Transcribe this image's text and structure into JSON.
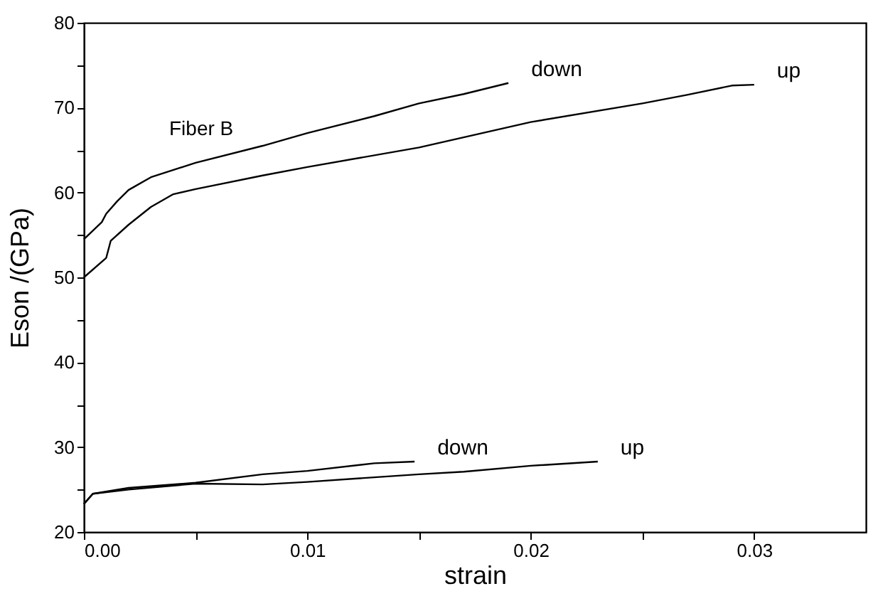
{
  "chart_data": {
    "type": "line",
    "xlabel": "strain",
    "ylabel": "Eson /(GPa)",
    "xlim": [
      0,
      0.035
    ],
    "ylim": [
      20,
      80
    ],
    "xticks": [
      {
        "value": 0,
        "label": "0.00"
      },
      {
        "value": 0.005,
        "label": null
      },
      0.01,
      {
        "value": 0.015,
        "label": null
      },
      0.02,
      {
        "value": 0.025,
        "label": null
      },
      0.03
    ],
    "yticks": [
      20,
      {
        "value": 25,
        "label": null
      },
      30,
      {
        "value": 35,
        "label": null
      },
      40,
      {
        "value": 45,
        "label": null
      },
      50,
      {
        "value": 55,
        "label": null
      },
      60,
      {
        "value": 65,
        "label": null
      },
      70,
      {
        "value": 75,
        "label": null
      },
      80
    ],
    "grid": false,
    "marker": "none",
    "line_style": "solid",
    "annotations": [
      "Fiber B"
    ],
    "series": [
      {
        "name": "down",
        "color": "#000000",
        "x": [
          0,
          0.0008,
          0.001,
          0.0015,
          0.002,
          0.003,
          0.005,
          0.008,
          0.01,
          0.013,
          0.015,
          0.017,
          0.019
        ],
        "values": [
          54.5,
          56.5,
          57.5,
          59,
          60.3,
          61.8,
          63.5,
          65.5,
          67,
          69,
          70.5,
          71.6,
          72.9
        ]
      },
      {
        "name": "up",
        "color": "#000000",
        "x": [
          0,
          0.001,
          0.0012,
          0.002,
          0.003,
          0.004,
          0.005,
          0.008,
          0.01,
          0.015,
          0.02,
          0.025,
          0.027,
          0.029,
          0.03
        ],
        "values": [
          50,
          52.3,
          54.3,
          56.2,
          58.3,
          59.8,
          60.4,
          62,
          63,
          65.3,
          68.3,
          70.5,
          71.5,
          72.6,
          72.7
        ]
      },
      {
        "name": "down",
        "color": "#000000",
        "x": [
          0,
          0.0004,
          0.002,
          0.005,
          0.008,
          0.01,
          0.013,
          0.0148
        ],
        "values": [
          23.3,
          24.5,
          25.2,
          25.8,
          26.8,
          27.2,
          28.1,
          28.3
        ]
      },
      {
        "name": "up",
        "color": "#000000",
        "x": [
          0,
          0.0004,
          0.002,
          0.005,
          0.008,
          0.01,
          0.015,
          0.017,
          0.02,
          0.023
        ],
        "values": [
          23.3,
          24.5,
          25.0,
          25.7,
          25.6,
          25.9,
          26.8,
          27.1,
          27.8,
          28.3
        ]
      }
    ]
  }
}
